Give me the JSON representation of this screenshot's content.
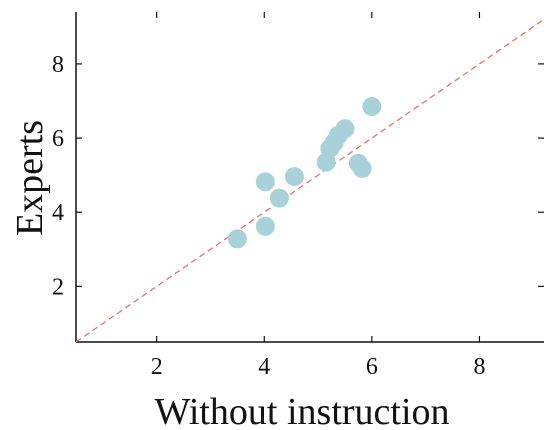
{
  "chart_data": {
    "type": "scatter",
    "xlabel": "Without instruction",
    "ylabel": "Experts",
    "xlim": [
      0.5,
      9.2
    ],
    "ylim": [
      0.5,
      9.4
    ],
    "x_ticks": [
      2,
      4,
      6,
      8
    ],
    "y_ticks": [
      2,
      4,
      6,
      8
    ],
    "reference_line": {
      "style": "dashed",
      "color": "#e8706a",
      "from": [
        0.5,
        0.5
      ],
      "to": [
        9.2,
        9.2
      ]
    },
    "marker_color": "#a9d1da",
    "grid": false,
    "legend": "none",
    "points": [
      {
        "x": 3.5,
        "y": 3.28
      },
      {
        "x": 4.02,
        "y": 3.62
      },
      {
        "x": 4.02,
        "y": 4.82
      },
      {
        "x": 4.28,
        "y": 4.38
      },
      {
        "x": 4.56,
        "y": 4.96
      },
      {
        "x": 5.15,
        "y": 5.35
      },
      {
        "x": 5.22,
        "y": 5.72
      },
      {
        "x": 5.3,
        "y": 5.88
      },
      {
        "x": 5.38,
        "y": 6.08
      },
      {
        "x": 5.5,
        "y": 6.25
      },
      {
        "x": 5.75,
        "y": 5.32
      },
      {
        "x": 5.82,
        "y": 5.18
      },
      {
        "x": 6.0,
        "y": 6.85
      }
    ]
  }
}
